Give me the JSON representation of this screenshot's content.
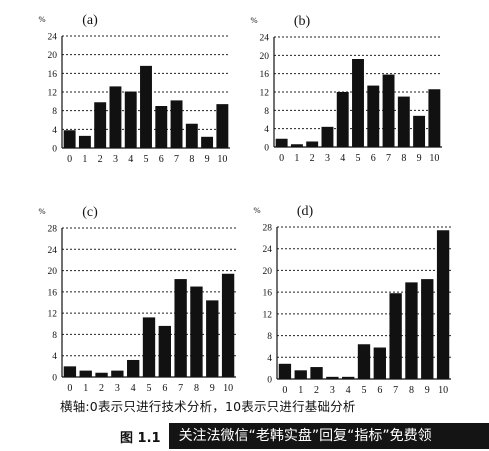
{
  "chart_data": [
    {
      "type": "bar",
      "title": "(a)",
      "ylabel": "%",
      "ylim": [
        0,
        24
      ],
      "yticks": [
        "0",
        "4",
        "8",
        "12",
        "16",
        "20",
        "24"
      ],
      "categories": [
        "0",
        "1",
        "2",
        "3",
        "4",
        "5",
        "6",
        "7",
        "8",
        "9",
        "10"
      ],
      "values": [
        3.8,
        2.6,
        9.8,
        13.2,
        12.1,
        17.6,
        9.0,
        10.2,
        5.2,
        2.4,
        9.4
      ],
      "grid": "dashed horizontal"
    },
    {
      "type": "bar",
      "title": "(b)",
      "ylabel": "%",
      "ylim": [
        0,
        24
      ],
      "yticks": [
        "0",
        "4",
        "8",
        "12",
        "16",
        "20",
        "24"
      ],
      "categories": [
        "0",
        "1",
        "2",
        "3",
        "4",
        "5",
        "6",
        "7",
        "8",
        "9",
        "10"
      ],
      "values": [
        1.8,
        0.6,
        1.2,
        4.4,
        12.0,
        19.2,
        13.4,
        15.8,
        11.0,
        6.8,
        12.6
      ],
      "grid": "dashed horizontal"
    },
    {
      "type": "bar",
      "title": "(c)",
      "ylabel": "%",
      "ylim": [
        0,
        28
      ],
      "yticks": [
        "0",
        "4",
        "8",
        "12",
        "16",
        "20",
        "24",
        "28"
      ],
      "categories": [
        "0",
        "1",
        "2",
        "3",
        "4",
        "5",
        "6",
        "7",
        "8",
        "9",
        "10"
      ],
      "values": [
        2.0,
        1.2,
        0.8,
        1.2,
        3.2,
        11.2,
        9.6,
        18.4,
        17.0,
        14.4,
        19.4
      ],
      "grid": "dashed horizontal"
    },
    {
      "type": "bar",
      "title": "(d)",
      "ylabel": "%",
      "ylim": [
        0,
        28
      ],
      "yticks": [
        "0",
        "4",
        "8",
        "12",
        "16",
        "20",
        "24",
        "28"
      ],
      "categories": [
        "0",
        "1",
        "2",
        "3",
        "4",
        "5",
        "6",
        "7",
        "8",
        "9",
        "10"
      ],
      "values": [
        2.8,
        1.6,
        2.2,
        0.4,
        0.4,
        6.4,
        5.8,
        15.8,
        17.8,
        18.4,
        27.4
      ],
      "grid": "dashed horizontal"
    }
  ],
  "caption": "横轴:0表示只进行技术分析，10表示只进行基础分析",
  "figure_label": "图 1.1",
  "promo_text": "关注法微信“老韩实盘”回复“指标”免费领"
}
